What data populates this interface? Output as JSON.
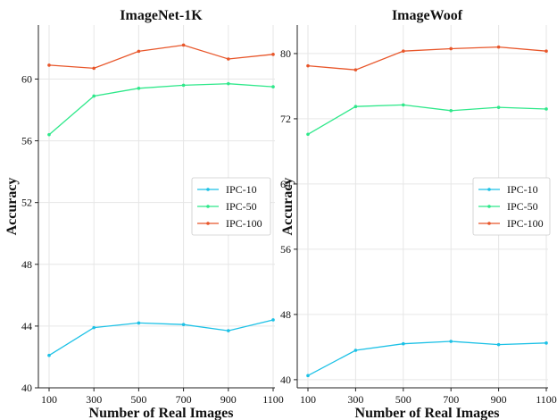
{
  "chart_data": [
    {
      "type": "line",
      "title": "ImageNet-1K",
      "xlabel": "Number of Real Images",
      "ylabel": "Accuracy",
      "x": [
        100,
        300,
        500,
        700,
        900,
        1100
      ],
      "xticks": [
        100,
        300,
        500,
        700,
        900,
        1100
      ],
      "yticks": [
        40,
        44,
        48,
        52,
        56,
        60
      ],
      "ylim": [
        40,
        63.5
      ],
      "grid": true,
      "legend_position": "center-right",
      "series": [
        {
          "name": "IPC-10",
          "color": "#1cc1e6",
          "values": [
            42.1,
            43.9,
            44.2,
            44.1,
            43.7,
            44.4
          ]
        },
        {
          "name": "IPC-50",
          "color": "#2ee88a",
          "values": [
            56.4,
            58.9,
            59.4,
            59.6,
            59.7,
            59.5
          ]
        },
        {
          "name": "IPC-100",
          "color": "#e8562a",
          "values": [
            60.9,
            60.7,
            61.8,
            62.2,
            61.3,
            61.6
          ]
        }
      ]
    },
    {
      "type": "line",
      "title": "ImageWoof",
      "xlabel": "Number of Real Images",
      "ylabel": "Accuracy",
      "x": [
        100,
        300,
        500,
        700,
        900,
        1100
      ],
      "xticks": [
        100,
        300,
        500,
        700,
        900,
        1100
      ],
      "yticks": [
        40,
        48,
        56,
        64,
        72,
        80
      ],
      "ylim": [
        39,
        83.5
      ],
      "grid": true,
      "legend_position": "center-right",
      "series": [
        {
          "name": "IPC-10",
          "color": "#1cc1e6",
          "values": [
            40.5,
            43.6,
            44.4,
            44.7,
            44.3,
            44.5
          ]
        },
        {
          "name": "IPC-50",
          "color": "#2ee88a",
          "values": [
            70.1,
            73.5,
            73.7,
            73.0,
            73.4,
            73.2
          ]
        },
        {
          "name": "IPC-100",
          "color": "#e8562a",
          "values": [
            78.5,
            78.0,
            80.3,
            80.6,
            80.8,
            80.3
          ]
        }
      ]
    }
  ]
}
